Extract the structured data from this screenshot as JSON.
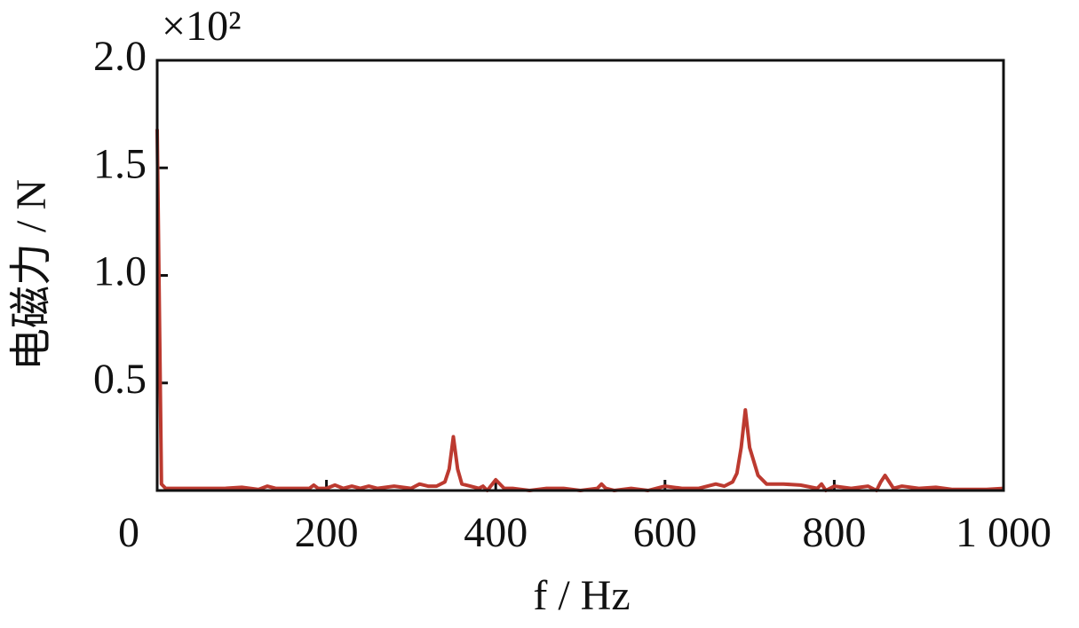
{
  "chart_data": {
    "type": "line",
    "y_multiplier": "×10²",
    "y_label": "电磁力 / N",
    "x_label": "f / Hz",
    "xlim": [
      0,
      1000
    ],
    "ylim": [
      0,
      2
    ],
    "xticks": [
      0,
      200,
      400,
      600,
      800,
      {
        "value": 1000,
        "label": "1 000"
      }
    ],
    "yticks": [
      0.5,
      {
        "value": 1,
        "label": "1.0"
      },
      1.5,
      {
        "value": 2,
        "label": "2.0"
      }
    ],
    "series": [
      {
        "color": "#bc3a30",
        "x": [
          0,
          5,
          10,
          20,
          40,
          60,
          80,
          100,
          120,
          130,
          140,
          160,
          180,
          185,
          190,
          200,
          210,
          220,
          230,
          240,
          250,
          260,
          280,
          300,
          310,
          320,
          330,
          340,
          345,
          350,
          355,
          360,
          370,
          380,
          385,
          390,
          400,
          410,
          420,
          440,
          460,
          480,
          500,
          520,
          525,
          530,
          540,
          560,
          580,
          600,
          620,
          640,
          660,
          670,
          680,
          685,
          690,
          695,
          700,
          710,
          720,
          740,
          760,
          780,
          785,
          790,
          800,
          820,
          840,
          850,
          855,
          860,
          870,
          880,
          900,
          920,
          940,
          960,
          980,
          1000
        ],
        "values": [
          1.68,
          0.03,
          0.01,
          0.01,
          0.01,
          0.01,
          0.01,
          0.015,
          0.005,
          0.02,
          0.01,
          0.01,
          0.01,
          0.025,
          0.01,
          0.01,
          0.025,
          0.01,
          0.02,
          0.01,
          0.02,
          0.01,
          0.02,
          0.01,
          0.03,
          0.02,
          0.02,
          0.04,
          0.1,
          0.25,
          0.1,
          0.03,
          0.02,
          0.01,
          0.02,
          0,
          0.05,
          0.01,
          0.01,
          0,
          0.01,
          0.01,
          0,
          0.01,
          0.03,
          0.01,
          0,
          0.01,
          0,
          0.02,
          0.01,
          0.01,
          0.03,
          0.02,
          0.04,
          0.08,
          0.2,
          0.375,
          0.2,
          0.07,
          0.03,
          0.03,
          0.025,
          0.01,
          0.03,
          0,
          0.02,
          0.01,
          0.02,
          0,
          0.04,
          0.07,
          0.01,
          0.02,
          0.01,
          0.015,
          0.005,
          0.005,
          0.005,
          0.01
        ]
      }
    ]
  }
}
